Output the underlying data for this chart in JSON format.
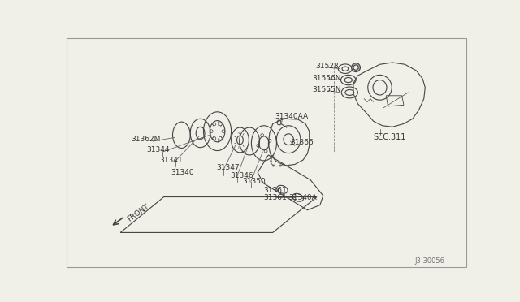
{
  "bg_color": "#f0efe8",
  "line_color": "#444444",
  "label_color": "#333333",
  "fig_code": "J3 30056",
  "sec_label": "SEC.311",
  "front_label": "FRONT"
}
